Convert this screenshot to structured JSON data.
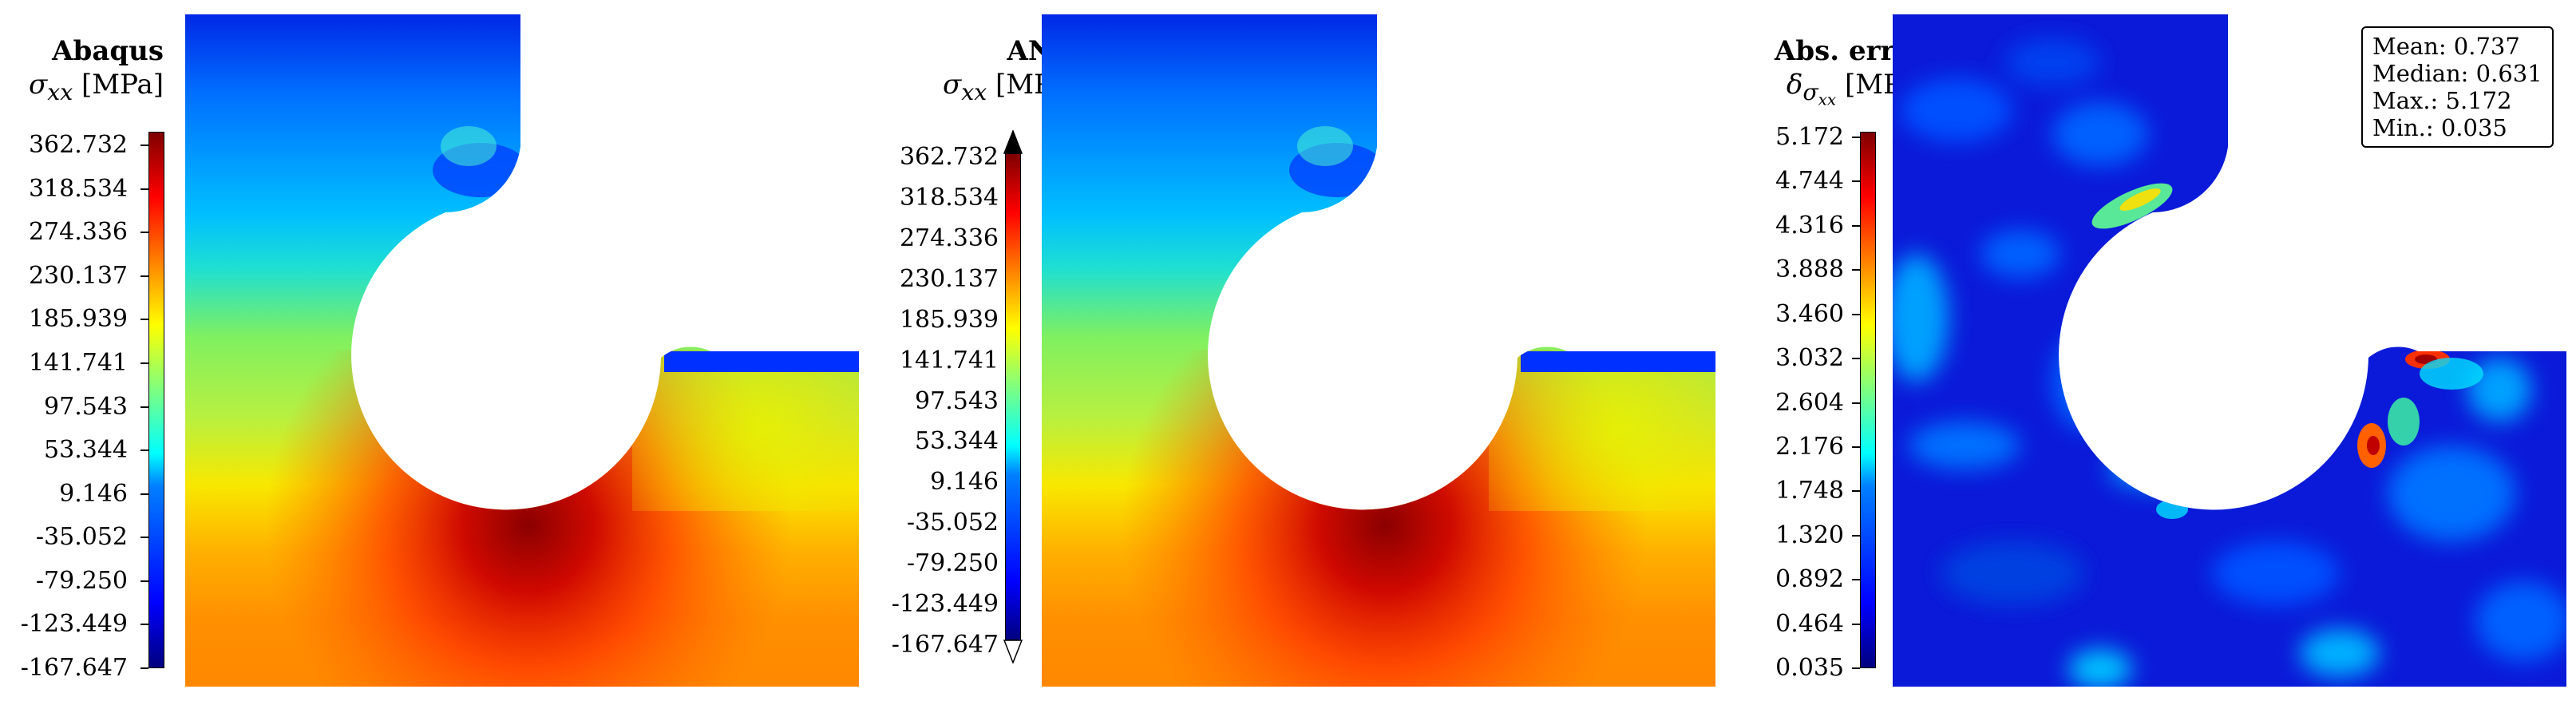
{
  "chart_data": [
    {
      "type": "heatmap",
      "title": "Abaqus",
      "symbol": "σ",
      "symbol_sub": "xx",
      "unit": "[MPa]",
      "colorbar_ticks": [
        "362.732",
        "318.534",
        "274.336",
        "230.137",
        "185.939",
        "141.741",
        "97.543",
        "53.344",
        "9.146",
        "-35.052",
        "-79.250",
        "-123.449",
        "-167.647"
      ],
      "clim": [
        -167.647,
        362.732
      ],
      "colormap": "jet"
    },
    {
      "type": "heatmap",
      "title": "ANN",
      "symbol": "σ",
      "symbol_sub": "xx",
      "unit": "[MPa]",
      "colorbar_ticks": [
        "362.732",
        "318.534",
        "274.336",
        "230.137",
        "185.939",
        "141.741",
        "97.543",
        "53.344",
        "9.146",
        "-35.052",
        "-79.250",
        "-123.449",
        "-167.647"
      ],
      "clim": [
        -167.647,
        362.732
      ],
      "colorbar_extend": "both",
      "colormap": "jet"
    },
    {
      "type": "heatmap",
      "title": "Abs. error",
      "symbol": "δ",
      "symbol_sub": "σ",
      "symbol_subsub": "xx",
      "unit": "[MPa]",
      "colorbar_ticks": [
        "5.172",
        "4.744",
        "4.316",
        "3.888",
        "3.460",
        "3.032",
        "2.604",
        "2.176",
        "1.748",
        "1.320",
        "0.892",
        "0.464",
        "0.035"
      ],
      "clim": [
        0.035,
        5.172
      ],
      "colormap": "jet",
      "stats": {
        "mean": "Mean: 0.737",
        "median": "Median: 0.631",
        "max": "Max.: 5.172",
        "min": "Min.: 0.035"
      }
    }
  ]
}
